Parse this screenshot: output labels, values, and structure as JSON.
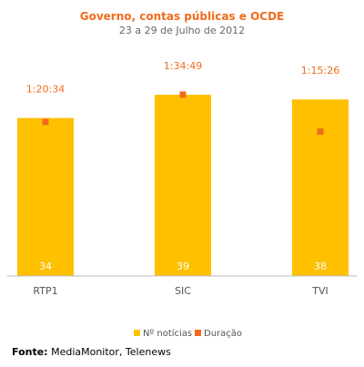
{
  "chart_data": {
    "type": "bar",
    "title": "Governo, contas públicas e OCDE",
    "subtitle": "23 a 29 de Julho de 2012",
    "categories": [
      "RTP1",
      "SIC",
      "TVI"
    ],
    "series": [
      {
        "name": "Nº notícias",
        "values": [
          34,
          39,
          38
        ],
        "color": "#FFC000"
      },
      {
        "name": "Duração",
        "values": [
          "1:20:34",
          "1:34:49",
          "1:15:26"
        ],
        "seconds": [
          4834,
          5689,
          4526
        ],
        "color": "#F26B1D"
      }
    ],
    "legend": "bottom",
    "grid": false,
    "y_axis_visible": false
  },
  "colors": {
    "title": "#F26B1D",
    "subtitle": "#666666",
    "duration_label": "#F26B1D",
    "bar_label": "#FFFFFF",
    "category_label": "#555555",
    "axis_line": "#BBBBBB"
  },
  "source": {
    "label": "Fonte:",
    "text": "MediaMonitor, Telenews"
  }
}
